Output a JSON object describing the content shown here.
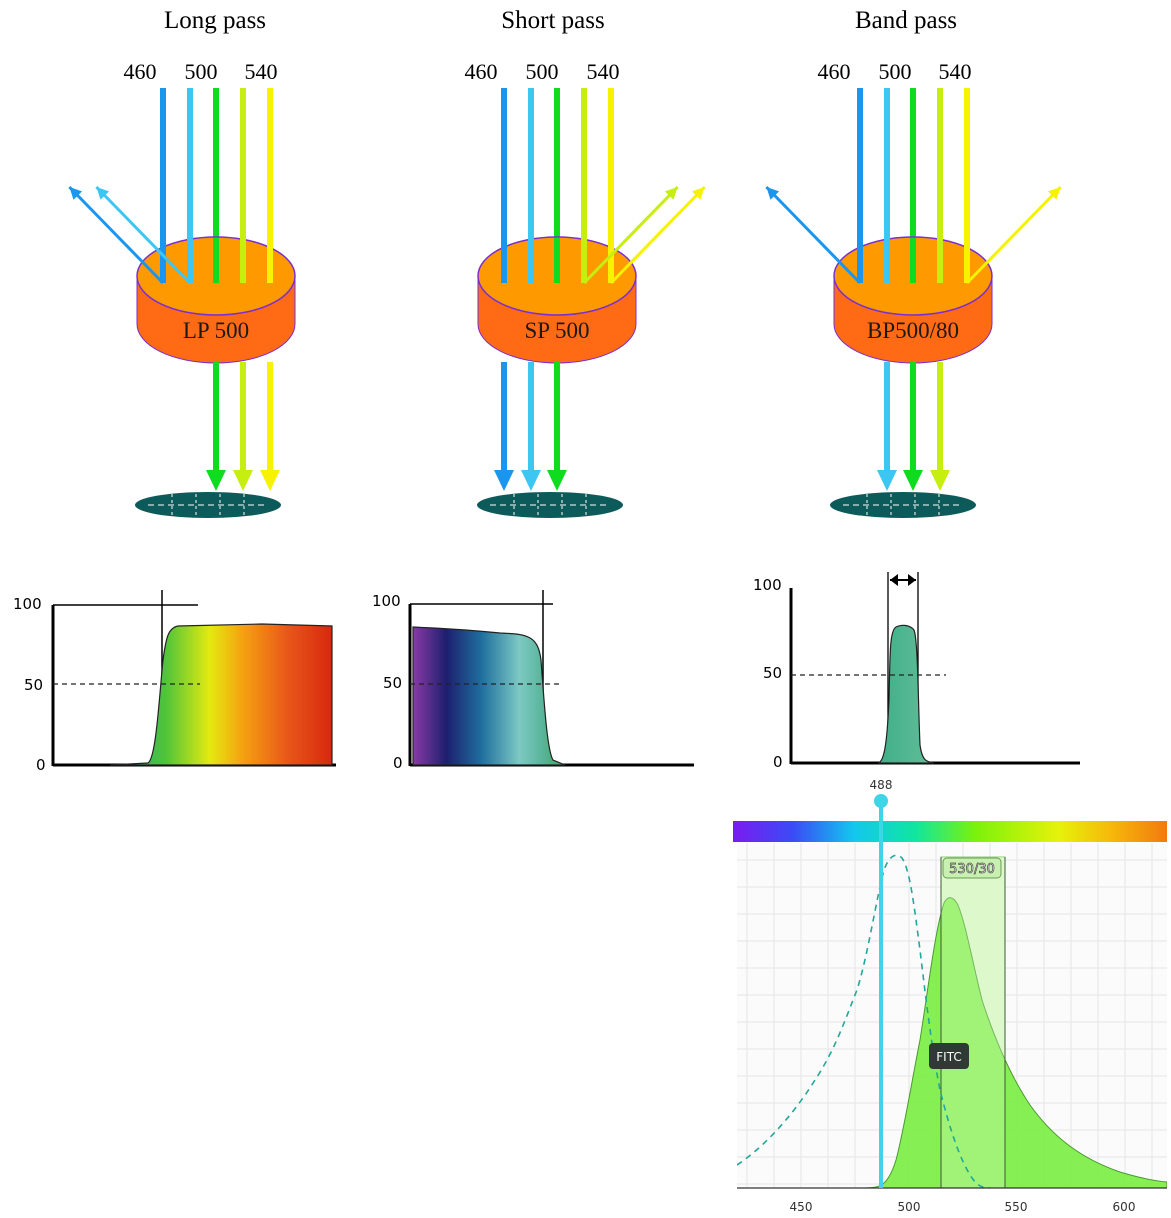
{
  "filters": [
    {
      "title": "Long pass",
      "wavelengths": [
        "460",
        "500",
        "540"
      ],
      "label": "LP 500",
      "transmitted": [
        "green-500",
        "lime-520",
        "yellow-540"
      ],
      "reflected": [
        "blue-460",
        "cyan-480"
      ]
    },
    {
      "title": "Short pass",
      "wavelengths": [
        "460",
        "500",
        "540"
      ],
      "label": "SP 500",
      "transmitted": [
        "blue-460",
        "cyan-480",
        "green-500"
      ],
      "reflected": [
        "lime-520",
        "yellow-540"
      ]
    },
    {
      "title": "Band pass",
      "wavelengths": [
        "460",
        "500",
        "540"
      ],
      "label": "BP500/80",
      "transmitted": [
        "cyan-480",
        "green-500",
        "lime-520"
      ],
      "reflected": [
        "blue-460",
        "yellow-540"
      ]
    }
  ],
  "beam_colors": {
    "blue-460": "#1b96ee",
    "cyan-480": "#3dc6f2",
    "green-500": "#0fdc1e",
    "lime-520": "#c6ef10",
    "yellow-540": "#f6f200"
  },
  "filter_colors": {
    "top": "#ff9900",
    "side": "#ff6a14",
    "rim": "#7a2fd0",
    "detector": "#0d5a5a"
  },
  "transmission_plots": [
    {
      "type": "long-pass",
      "y_ticks": [
        "100",
        "50",
        "0"
      ],
      "max_transmission": 87
    },
    {
      "type": "short-pass",
      "y_ticks": [
        "100",
        "50",
        "0"
      ],
      "max_transmission": 85
    },
    {
      "type": "band-pass",
      "y_ticks": [
        "100",
        "50",
        "0"
      ],
      "max_transmission": 78
    }
  ],
  "spectrum_chart": {
    "laser_label": "488",
    "laser_nm": 488,
    "laser_color": "#2fd3e6",
    "filter_label": "530/30",
    "filter_center_nm": 530,
    "filter_width_nm": 30,
    "fluor_label": "FITC",
    "fill_color": "#7fee4a",
    "x_ticks": [
      "450",
      "500",
      "550",
      "600"
    ]
  }
}
